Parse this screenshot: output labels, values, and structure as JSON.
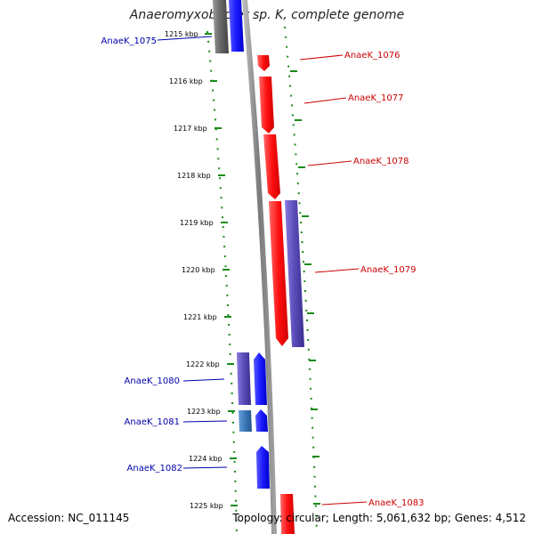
{
  "title": "Anaeromyxobacter sp. K, complete genome",
  "footer": {
    "accession": "Accession: NC_011145",
    "topology": "Topology: circular; Length: 5,061,632 bp; Genes: 4,512"
  },
  "colors": {
    "forward_gene": "#ff1010",
    "reverse_gene": "#1a1aff",
    "purple_gene": "#5a4cb8",
    "gray_gene": "#666666",
    "steel_gene": "#3a78b8",
    "forward_label": "#cc0000",
    "reverse_label": "#0000aa",
    "backbone": "#888888",
    "tick": "#1a8a1a"
  },
  "kbp_ticks": [
    "1215 kbp",
    "1216 kbp",
    "1217 kbp",
    "1218 kbp",
    "1219 kbp",
    "1220 kbp",
    "1221 kbp",
    "1222 kbp",
    "1223 kbp",
    "1224 kbp",
    "1225 kbp"
  ],
  "genes_forward": [
    {
      "label": "AnaeK_1076"
    },
    {
      "label": "AnaeK_1077"
    },
    {
      "label": "AnaeK_1078"
    },
    {
      "label": "AnaeK_1079"
    },
    {
      "label": "AnaeK_1083"
    }
  ],
  "genes_reverse": [
    {
      "label": "AnaeK_1075"
    },
    {
      "label": "AnaeK_1080"
    },
    {
      "label": "AnaeK_1081"
    },
    {
      "label": "AnaeK_1082"
    }
  ]
}
